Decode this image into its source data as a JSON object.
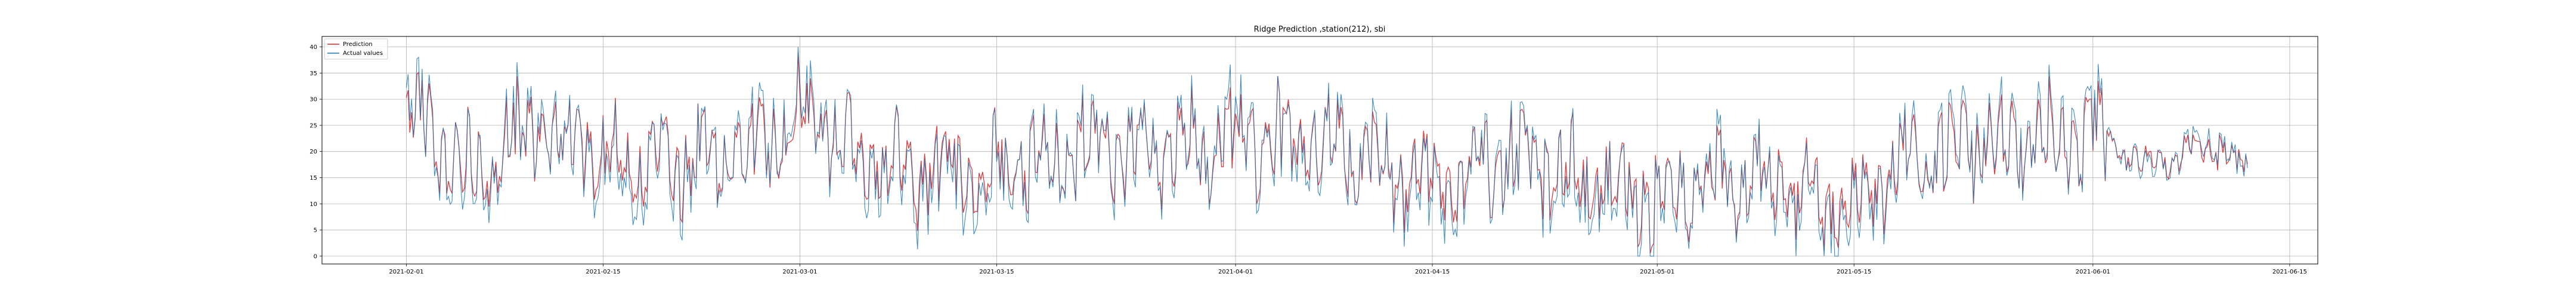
{
  "chart_data": {
    "type": "line",
    "title": "Ridge Prediction ,station(212), sbi",
    "xlabel": "",
    "ylabel": "",
    "grid": true,
    "legend_position": "upper-left",
    "x_start": "2021-01-26",
    "x_end": "2021-06-17",
    "ylim": [
      -1.5,
      42
    ],
    "x_ticks": [
      "2021-02-01",
      "2021-02-15",
      "2021-03-01",
      "2021-03-15",
      "2021-04-01",
      "2021-04-15",
      "2021-05-01",
      "2021-05-15",
      "2021-06-01",
      "2021-06-15"
    ],
    "y_ticks": [
      0,
      5,
      10,
      15,
      20,
      25,
      30,
      35,
      40
    ],
    "series": [
      {
        "name": "Prediction",
        "color": "#d62728",
        "x": [
          "2021-02-01",
          "2021-02-05",
          "2021-02-10",
          "2021-02-15",
          "2021-02-20",
          "2021-02-25",
          "2021-03-01",
          "2021-03-05",
          "2021-03-10",
          "2021-03-15",
          "2021-03-20",
          "2021-03-25",
          "2021-04-01",
          "2021-04-05",
          "2021-04-10",
          "2021-04-15",
          "2021-04-20",
          "2021-04-25",
          "2021-05-01",
          "2021-05-05",
          "2021-05-10",
          "2021-05-15",
          "2021-05-20",
          "2021-05-25",
          "2021-06-01",
          "2021-06-05",
          "2021-06-08",
          "2021-06-10",
          "2021-06-12"
        ],
        "values": [
          29.5,
          16,
          25,
          20,
          17,
          20,
          27,
          20,
          16,
          17,
          20,
          20,
          22,
          22,
          20,
          13,
          19,
          17,
          10,
          15,
          13,
          8,
          20,
          21,
          23,
          17,
          20,
          21,
          17
        ]
      },
      {
        "name": "Actual values",
        "color": "#1f77b4",
        "x": [
          "2021-02-01",
          "2021-02-05",
          "2021-02-10",
          "2021-02-15",
          "2021-02-20",
          "2021-02-25",
          "2021-03-01",
          "2021-03-05",
          "2021-03-10",
          "2021-03-15",
          "2021-03-20",
          "2021-03-25",
          "2021-04-01",
          "2021-04-05",
          "2021-04-10",
          "2021-04-15",
          "2021-04-20",
          "2021-04-25",
          "2021-05-01",
          "2021-05-05",
          "2021-05-10",
          "2021-05-15",
          "2021-05-20",
          "2021-05-25",
          "2021-06-01",
          "2021-06-05",
          "2021-06-08",
          "2021-06-10",
          "2021-06-12"
        ],
        "values": [
          32,
          14,
          27,
          18,
          15,
          21,
          29,
          19,
          14,
          15,
          21,
          19,
          24,
          20,
          21,
          10,
          20,
          15,
          8,
          16,
          11,
          5,
          21,
          22,
          24,
          16,
          21,
          22,
          16
        ]
      }
    ]
  }
}
